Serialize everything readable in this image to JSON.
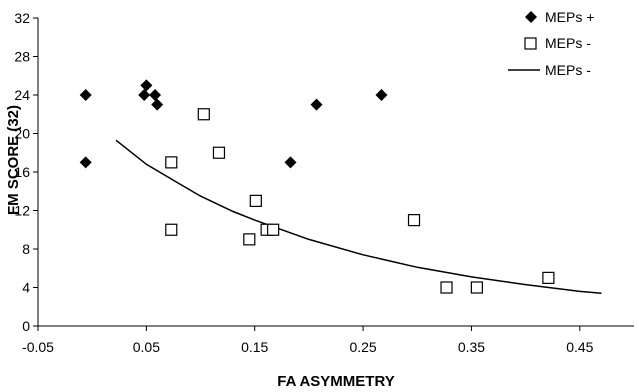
{
  "chart_data": {
    "type": "scatter",
    "xlabel": "FA ASYMMETRY",
    "ylabel": "FM SCORE (32)",
    "xlim": [
      -0.05,
      0.5
    ],
    "ylim": [
      0,
      32
    ],
    "x_ticks": [
      "-0.05",
      "0.05",
      "0.15",
      "0.25",
      "0.35",
      "0.45"
    ],
    "x_tick_values": [
      -0.05,
      0.05,
      0.15,
      0.25,
      0.35,
      0.45
    ],
    "y_ticks": [
      "0",
      "4",
      "8",
      "12",
      "16",
      "20",
      "24",
      "28",
      "32"
    ],
    "y_tick_values": [
      0,
      4,
      8,
      12,
      16,
      20,
      24,
      28,
      32
    ],
    "grid": false,
    "legend_position": "top-right",
    "series": [
      {
        "name": "MEPs +",
        "marker": "filled-diamond",
        "color": "#000000",
        "points": [
          {
            "x": -0.006,
            "y": 24
          },
          {
            "x": -0.006,
            "y": 17
          },
          {
            "x": 0.048,
            "y": 24
          },
          {
            "x": 0.05,
            "y": 25
          },
          {
            "x": 0.058,
            "y": 24
          },
          {
            "x": 0.06,
            "y": 23
          },
          {
            "x": 0.183,
            "y": 17
          },
          {
            "x": 0.207,
            "y": 23
          },
          {
            "x": 0.267,
            "y": 24
          }
        ]
      },
      {
        "name": "MEPs -",
        "marker": "open-square",
        "color": "#000000",
        "points": [
          {
            "x": 0.073,
            "y": 17
          },
          {
            "x": 0.073,
            "y": 10
          },
          {
            "x": 0.103,
            "y": 22
          },
          {
            "x": 0.117,
            "y": 18
          },
          {
            "x": 0.145,
            "y": 9
          },
          {
            "x": 0.151,
            "y": 13
          },
          {
            "x": 0.161,
            "y": 10
          },
          {
            "x": 0.167,
            "y": 10
          },
          {
            "x": 0.297,
            "y": 11
          },
          {
            "x": 0.327,
            "y": 4
          },
          {
            "x": 0.355,
            "y": 4
          },
          {
            "x": 0.421,
            "y": 5
          }
        ]
      },
      {
        "name": "MEPs -",
        "marker": "line",
        "color": "#000000",
        "x": [
          0.022,
          0.05,
          0.08,
          0.1,
          0.13,
          0.15,
          0.2,
          0.25,
          0.3,
          0.35,
          0.4,
          0.45,
          0.47
        ],
        "values": [
          19.3,
          16.8,
          14.8,
          13.5,
          11.9,
          11.0,
          9.0,
          7.4,
          6.1,
          5.1,
          4.3,
          3.6,
          3.4
        ]
      }
    ]
  }
}
